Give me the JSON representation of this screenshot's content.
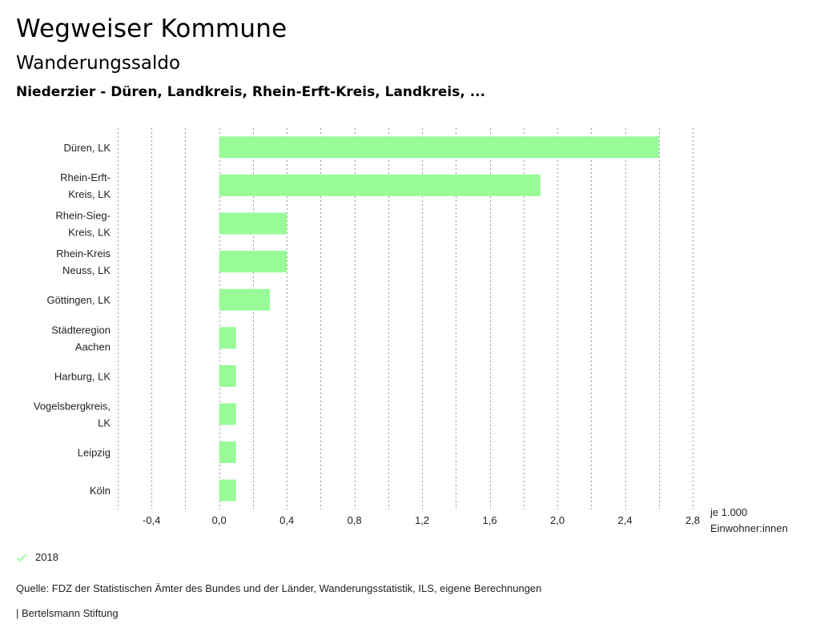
{
  "header": {
    "title": "Wegweiser Kommune",
    "subtitle": "Wanderungssaldo",
    "region": "Niederzier - Düren, Landkreis, Rhein-Erft-Kreis, Landkreis, ..."
  },
  "chart_data": {
    "type": "bar",
    "orientation": "horizontal",
    "categories": [
      [
        "Düren, LK"
      ],
      [
        "Rhein-Erft-",
        "Kreis, LK"
      ],
      [
        "Rhein-Sieg-",
        "Kreis, LK"
      ],
      [
        "Rhein-Kreis",
        "Neuss, LK"
      ],
      [
        "Göttingen, LK"
      ],
      [
        "Städteregion",
        "Aachen"
      ],
      [
        "Harburg, LK"
      ],
      [
        "Vogelsbergkreis,",
        "LK"
      ],
      [
        "Leipzig"
      ],
      [
        "Köln"
      ]
    ],
    "series": [
      {
        "name": "2018",
        "color": "#98fb98",
        "values": [
          2.6,
          1.9,
          0.4,
          0.4,
          0.3,
          0.1,
          0.1,
          0.1,
          0.1,
          0.1
        ]
      }
    ],
    "xlim": [
      -0.6,
      2.8
    ],
    "xticks": [
      "-0,4",
      "0,0",
      "0,4",
      "0,8",
      "1,2",
      "1,6",
      "2,0",
      "2,4",
      "2,8"
    ],
    "xtick_values": [
      -0.4,
      0.0,
      0.4,
      0.8,
      1.2,
      1.6,
      2.0,
      2.4,
      2.8
    ],
    "grid_values": [
      -0.6,
      -0.4,
      -0.2,
      0.0,
      0.2,
      0.4,
      0.6,
      0.8,
      1.0,
      1.2,
      1.4,
      1.6,
      1.8,
      2.0,
      2.2,
      2.4,
      2.6,
      2.8
    ],
    "unit_line1": "je 1.000",
    "unit_line2": "Einwohner:innen",
    "grid": true,
    "legend_position": "bottom-left"
  },
  "legend": {
    "label": "2018",
    "icon": "check-icon",
    "color": "#98fb98"
  },
  "footer": {
    "source": "Quelle: FDZ der Statistischen Ämter des Bundes und der Länder, Wanderungsstatistik, ILS, eigene Berechnungen",
    "publisher": "| Bertelsmann Stiftung"
  }
}
